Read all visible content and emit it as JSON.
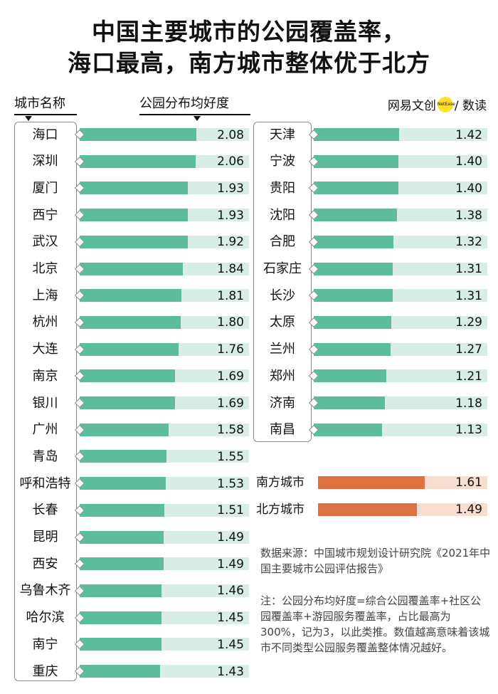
{
  "title_line1": "中国主要城市的公园覆盖率，",
  "title_line2": "海口最高，南方城市整体优于北方",
  "col_city": "城市名称",
  "col_metric": "公园分布均好度",
  "brand": {
    "left": "网易文创",
    "badge": "NetEase",
    "right": "/ 数读"
  },
  "colors": {
    "bar": "#5bbd9d",
    "track": "#d8ede4",
    "south": "#dd7240",
    "region_track": "#f6ddd0"
  },
  "chart_data": {
    "type": "bar",
    "title": "中国主要城市的公园覆盖率，海口最高，南方城市整体优于北方",
    "ylabel": "公园分布均好度",
    "xlabel": "城市名称",
    "ylim": [
      0,
      3
    ],
    "left_column": [
      {
        "city": "海口",
        "value": 2.08
      },
      {
        "city": "深圳",
        "value": 2.06
      },
      {
        "city": "厦门",
        "value": 1.93
      },
      {
        "city": "西宁",
        "value": 1.93
      },
      {
        "city": "武汉",
        "value": 1.92
      },
      {
        "city": "北京",
        "value": 1.84
      },
      {
        "city": "上海",
        "value": 1.81
      },
      {
        "city": "杭州",
        "value": 1.8
      },
      {
        "city": "大连",
        "value": 1.76
      },
      {
        "city": "南京",
        "value": 1.69
      },
      {
        "city": "银川",
        "value": 1.69
      },
      {
        "city": "广州",
        "value": 1.58
      },
      {
        "city": "青岛",
        "value": 1.55
      },
      {
        "city": "呼和浩特",
        "value": 1.53
      },
      {
        "city": "长春",
        "value": 1.51
      },
      {
        "city": "昆明",
        "value": 1.49
      },
      {
        "city": "西安",
        "value": 1.49
      },
      {
        "city": "乌鲁木齐",
        "value": 1.46
      },
      {
        "city": "哈尔滨",
        "value": 1.45
      },
      {
        "city": "南宁",
        "value": 1.45
      },
      {
        "city": "重庆",
        "value": 1.43
      }
    ],
    "right_column": [
      {
        "city": "天津",
        "value": 1.42
      },
      {
        "city": "宁波",
        "value": 1.4
      },
      {
        "city": "贵阳",
        "value": 1.4
      },
      {
        "city": "沈阳",
        "value": 1.38
      },
      {
        "city": "合肥",
        "value": 1.32
      },
      {
        "city": "石家庄",
        "value": 1.31
      },
      {
        "city": "长沙",
        "value": 1.31
      },
      {
        "city": "太原",
        "value": 1.29
      },
      {
        "city": "兰州",
        "value": 1.27
      },
      {
        "city": "郑州",
        "value": 1.21
      },
      {
        "city": "济南",
        "value": 1.18
      },
      {
        "city": "南昌",
        "value": 1.13
      }
    ],
    "regions": [
      {
        "name": "南方城市",
        "value": 1.61
      },
      {
        "name": "北方城市",
        "value": 1.49
      }
    ]
  },
  "note_source": "数据来源：中国城市规划设计研究院《2021年中国主要城市公园评估报告》",
  "note_text": "注：公园分布均好度=综合公园覆盖率+社区公园覆盖率+游园服务覆盖率，占比最高为300%，记为3，以此类推。数值越高意味着该城市不同类型公园服务覆盖整体情况越好。"
}
